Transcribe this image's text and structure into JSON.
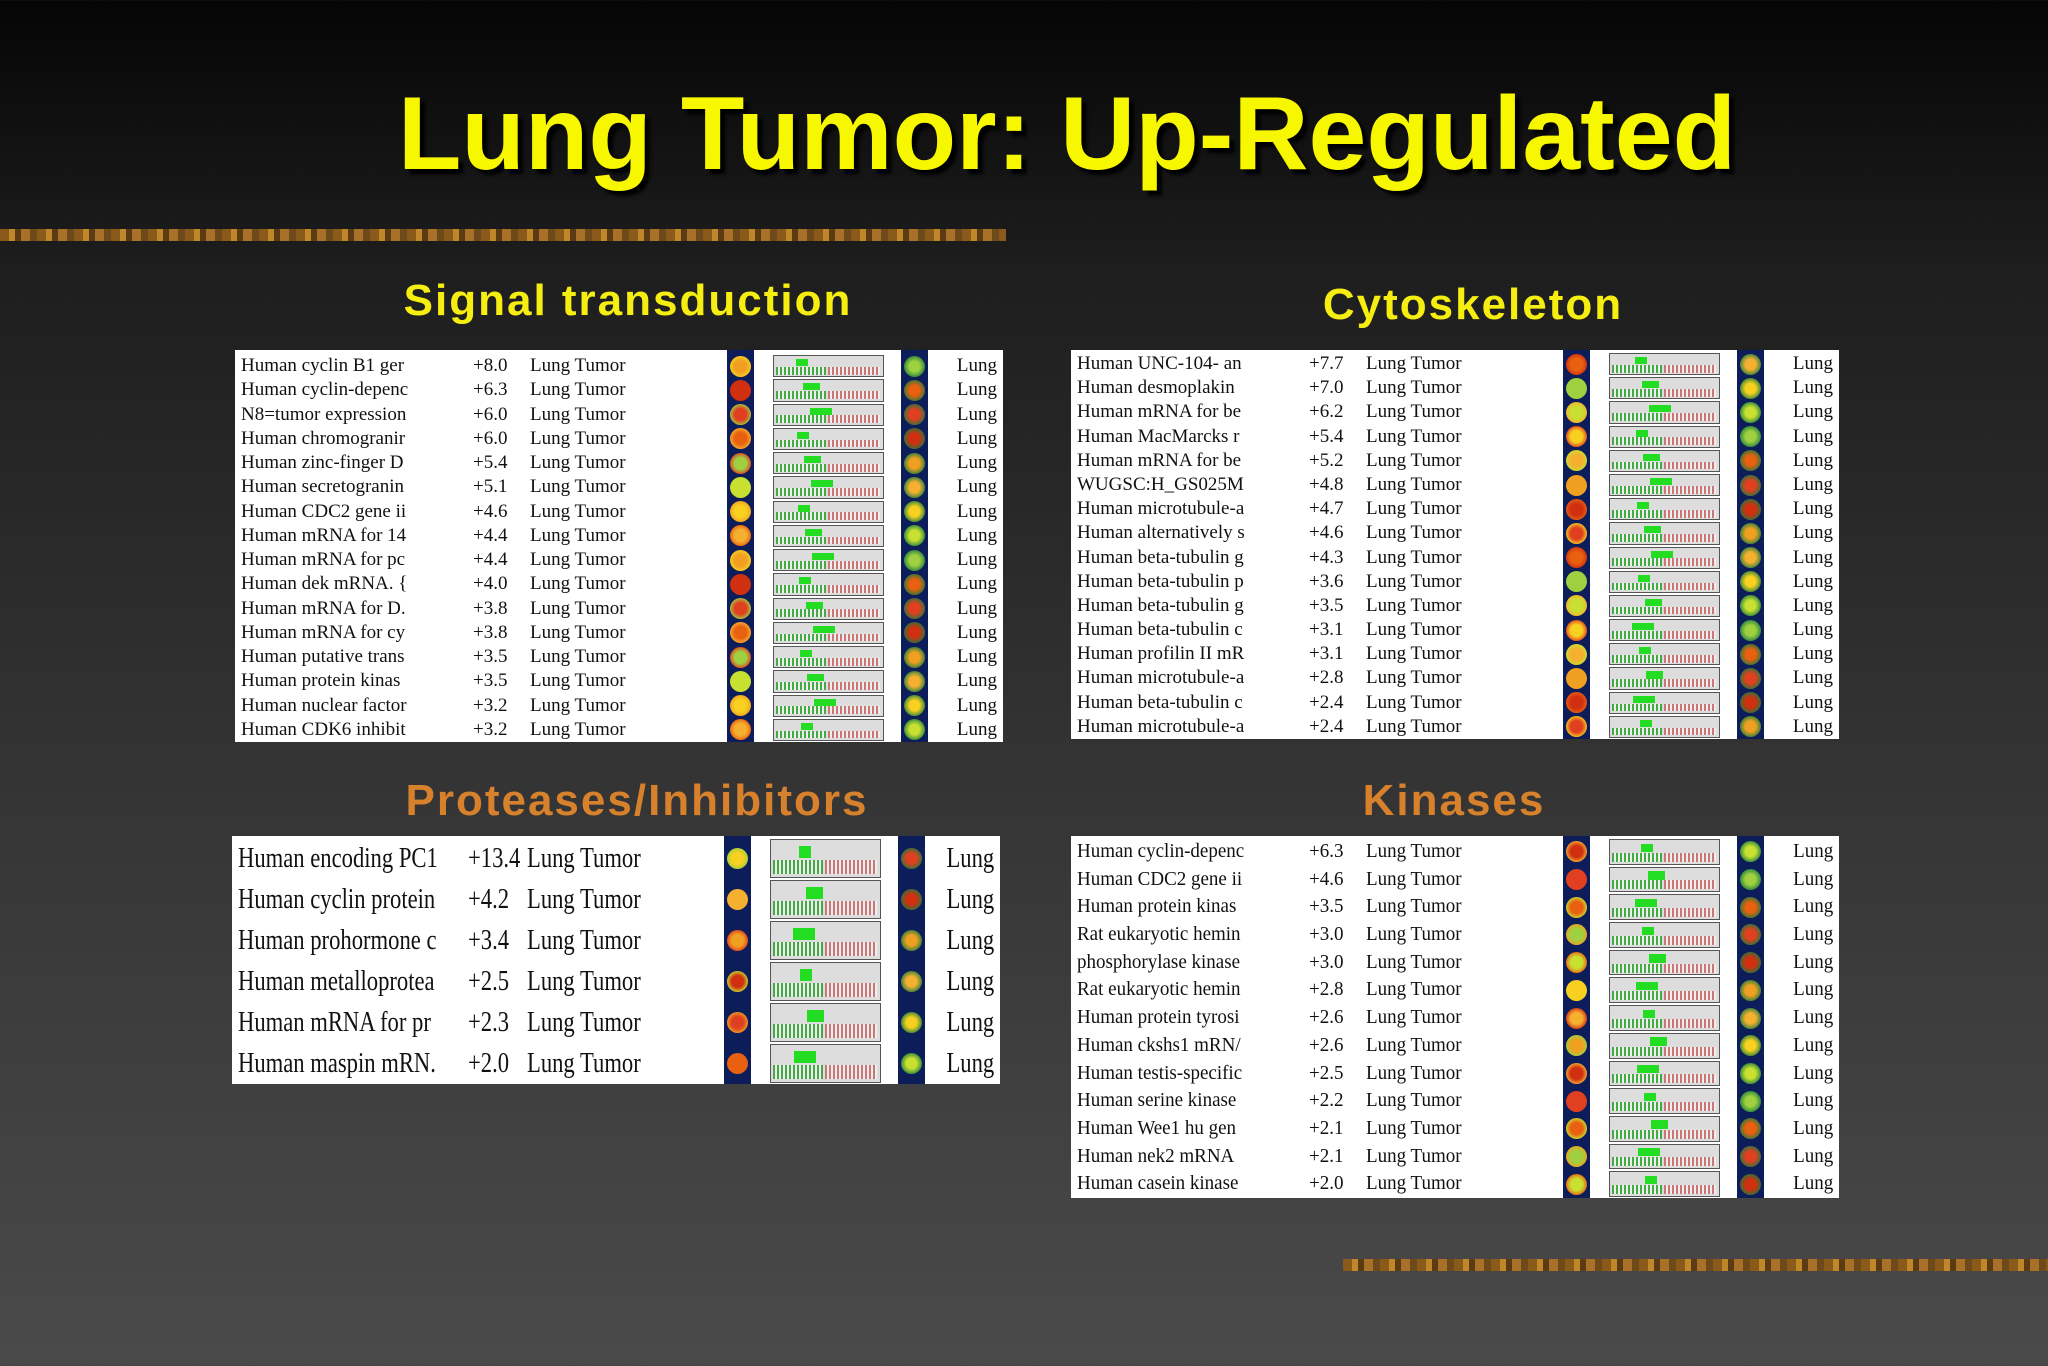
{
  "title": "Lung Tumor: Up-Regulated",
  "panels": [
    {
      "heading": "Signal transduction",
      "rows": [
        [
          "Human cyclin B1 ger",
          "+8.0",
          "Lung Tumor",
          "Lung"
        ],
        [
          "Human cyclin-depenc",
          "+6.3",
          "Lung Tumor",
          "Lung"
        ],
        [
          "N8=tumor expression",
          "+6.0",
          "Lung Tumor",
          "Lung"
        ],
        [
          "Human chromogranir",
          "+6.0",
          "Lung Tumor",
          "Lung"
        ],
        [
          "Human zinc-finger D",
          "+5.4",
          "Lung Tumor",
          "Lung"
        ],
        [
          "Human secretogranin",
          "+5.1",
          "Lung Tumor",
          "Lung"
        ],
        [
          "Human CDC2 gene ii",
          "+4.6",
          "Lung Tumor",
          "Lung"
        ],
        [
          "Human mRNA for 14",
          "+4.4",
          "Lung Tumor",
          "Lung"
        ],
        [
          "Human mRNA for pc",
          "+4.4",
          "Lung Tumor",
          "Lung"
        ],
        [
          "Human dek mRNA. {",
          "+4.0",
          "Lung Tumor",
          "Lung"
        ],
        [
          "Human mRNA for D.",
          "+3.8",
          "Lung Tumor",
          "Lung"
        ],
        [
          "Human mRNA for cy",
          "+3.8",
          "Lung Tumor",
          "Lung"
        ],
        [
          "Human putative trans",
          "+3.5",
          "Lung Tumor",
          "Lung"
        ],
        [
          "Human protein kinas",
          "+3.5",
          "Lung Tumor",
          "Lung"
        ],
        [
          "Human nuclear factor",
          "+3.2",
          "Lung Tumor",
          "Lung"
        ],
        [
          "Human CDK6 inhibit",
          "+3.2",
          "Lung Tumor",
          "Lung"
        ]
      ]
    },
    {
      "heading": "Cytoskeleton",
      "rows": [
        [
          "Human UNC-104- an",
          "+7.7",
          "Lung Tumor",
          "Lung"
        ],
        [
          "Human desmoplakin",
          "+7.0",
          "Lung Tumor",
          "Lung"
        ],
        [
          "Human mRNA for be",
          "+6.2",
          "Lung Tumor",
          "Lung"
        ],
        [
          "Human MacMarcks r",
          "+5.4",
          "Lung Tumor",
          "Lung"
        ],
        [
          "Human mRNA for be",
          "+5.2",
          "Lung Tumor",
          "Lung"
        ],
        [
          "WUGSC:H_GS025M",
          "+4.8",
          "Lung Tumor",
          "Lung"
        ],
        [
          "Human microtubule-a",
          "+4.7",
          "Lung Tumor",
          "Lung"
        ],
        [
          "Human alternatively s",
          "+4.6",
          "Lung Tumor",
          "Lung"
        ],
        [
          "Human beta-tubulin g",
          "+4.3",
          "Lung Tumor",
          "Lung"
        ],
        [
          "Human beta-tubulin p",
          "+3.6",
          "Lung Tumor",
          "Lung"
        ],
        [
          "Human beta-tubulin g",
          "+3.5",
          "Lung Tumor",
          "Lung"
        ],
        [
          "Human beta-tubulin c",
          "+3.1",
          "Lung Tumor",
          "Lung"
        ],
        [
          "Human profilin II mR",
          "+3.1",
          "Lung Tumor",
          "Lung"
        ],
        [
          "Human microtubule-a",
          "+2.8",
          "Lung Tumor",
          "Lung"
        ],
        [
          "Human beta-tubulin c",
          "+2.4",
          "Lung Tumor",
          "Lung"
        ],
        [
          "Human microtubule-a",
          "+2.4",
          "Lung Tumor",
          "Lung"
        ]
      ]
    },
    {
      "heading": "Proteases/Inhibitors",
      "rows": [
        [
          "Human encoding PC1",
          "+13.4",
          "Lung Tumor",
          "Lung"
        ],
        [
          "Human cyclin protein",
          "+4.2",
          "Lung Tumor",
          "Lung"
        ],
        [
          "Human prohormone c",
          "+3.4",
          "Lung Tumor",
          "Lung"
        ],
        [
          "Human metalloprotea",
          "+2.5",
          "Lung Tumor",
          "Lung"
        ],
        [
          "Human mRNA for pr",
          "+2.3",
          "Lung Tumor",
          "Lung"
        ],
        [
          "Human maspin mRN.",
          "+2.0",
          "Lung Tumor",
          "Lung"
        ]
      ]
    },
    {
      "heading": "Kinases",
      "rows": [
        [
          "Human cyclin-depenc",
          "+6.3",
          "Lung Tumor",
          "Lung"
        ],
        [
          "Human CDC2 gene ii",
          "+4.6",
          "Lung Tumor",
          "Lung"
        ],
        [
          "Human protein kinas",
          "+3.5",
          "Lung Tumor",
          "Lung"
        ],
        [
          "Rat eukaryotic hemin",
          "+3.0",
          "Lung Tumor",
          "Lung"
        ],
        [
          "phosphorylase kinase",
          "+3.0",
          "Lung Tumor",
          "Lung"
        ],
        [
          "Rat eukaryotic hemin",
          "+2.8",
          "Lung Tumor",
          "Lung"
        ],
        [
          "Human protein tyrosi",
          "+2.6",
          "Lung Tumor",
          "Lung"
        ],
        [
          "Human ckshs1 mRN/",
          "+2.6",
          "Lung Tumor",
          "Lung"
        ],
        [
          "Human testis-specific",
          "+2.5",
          "Lung Tumor",
          "Lung"
        ],
        [
          "Human serine kinase",
          "+2.2",
          "Lung Tumor",
          "Lung"
        ],
        [
          "Human Wee1 hu gen",
          "+2.1",
          "Lung Tumor",
          "Lung"
        ],
        [
          "Human nek2 mRNA",
          "+2.1",
          "Lung Tumor",
          "Lung"
        ],
        [
          "Human casein kinase",
          "+2.0",
          "Lung Tumor",
          "Lung"
        ]
      ]
    }
  ]
}
